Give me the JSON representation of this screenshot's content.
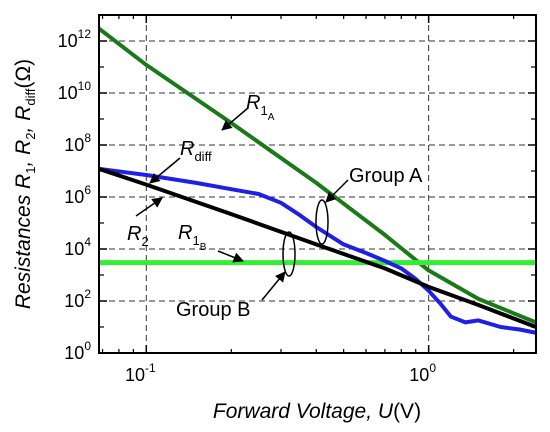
{
  "chart_data": {
    "type": "line",
    "x_scale": "log",
    "y_scale": "log",
    "xlim": [
      0.068,
      2.4
    ],
    "ylim": [
      1,
      10000000000000.0
    ],
    "grid": "dashed",
    "xlabel": {
      "main": "Forward Voltage, ",
      "var": "U",
      "unit": "(V)"
    },
    "ylabel": {
      "main": "Resistances ",
      "r1": "R",
      "r1_sub": "1",
      "sep1": ", ",
      "r2": "R",
      "r2_sub": "2",
      "sep2": ", ",
      "rd": "R",
      "rd_sub": "diff",
      "unit": "(Ω)"
    },
    "x_ticks": [
      {
        "value": 0.1,
        "base": "10",
        "exp": "-1"
      },
      {
        "value": 1,
        "base": "10",
        "exp": "0"
      }
    ],
    "y_ticks": [
      {
        "value": 1,
        "base": "10",
        "exp": "0"
      },
      {
        "value": 100,
        "base": "10",
        "exp": "2"
      },
      {
        "value": 10000,
        "base": "10",
        "exp": "4"
      },
      {
        "value": 1000000,
        "base": "10",
        "exp": "6"
      },
      {
        "value": 100000000,
        "base": "10",
        "exp": "8"
      },
      {
        "value": 10000000000,
        "base": "10",
        "exp": "10"
      },
      {
        "value": 1000000000000,
        "base": "10",
        "exp": "12"
      }
    ],
    "series": [
      {
        "key": "R1A",
        "color": "#1a7a1a",
        "width": 4,
        "x": [
          0.068,
          0.1,
          0.2,
          0.4,
          0.7,
          1.0,
          1.5,
          2.4
        ],
        "y": [
          3000000000000.0,
          120000000000.0,
          700000000.0,
          3500000.0,
          35000.0,
          1500,
          120,
          15
        ]
      },
      {
        "key": "R1B",
        "color": "#33ee33",
        "width": 5,
        "x": [
          0.068,
          2.4
        ],
        "y": [
          3000,
          3000
        ]
      },
      {
        "key": "R2",
        "color": "#000000",
        "width": 4,
        "x": [
          0.068,
          0.1,
          0.2,
          0.4,
          0.7,
          1.0,
          1.5,
          2.4
        ],
        "y": [
          12000000.0,
          3000000.0,
          220000.0,
          15000.0,
          1800,
          350,
          70,
          10
        ]
      },
      {
        "key": "Rdiff",
        "color": "#1f1fe6",
        "width": 4,
        "x": [
          0.068,
          0.1,
          0.15,
          0.2,
          0.25,
          0.3,
          0.35,
          0.4,
          0.5,
          0.6,
          0.7,
          0.8,
          0.9,
          1.0,
          1.1,
          1.2,
          1.35,
          1.5,
          1.8,
          2.1,
          2.4
        ],
        "y": [
          12000000.0,
          7000000.0,
          3500000.0,
          2000000.0,
          1300000.0,
          600000.0,
          200000.0,
          70000.0,
          15000.0,
          7000,
          3500,
          1800,
          700,
          250,
          80,
          25,
          15,
          18,
          10,
          8,
          6
        ]
      }
    ],
    "annotations": {
      "r1a": {
        "sym": "R",
        "sub": "1",
        "subsub": "A"
      },
      "r1b": {
        "sym": "R",
        "sub": "1",
        "subsub": "B"
      },
      "rdiff": {
        "sym": "R",
        "sub": "diff"
      },
      "r2": {
        "sym": "R",
        "sub": "2"
      },
      "group_a": "Group A",
      "group_b": "Group B"
    }
  }
}
